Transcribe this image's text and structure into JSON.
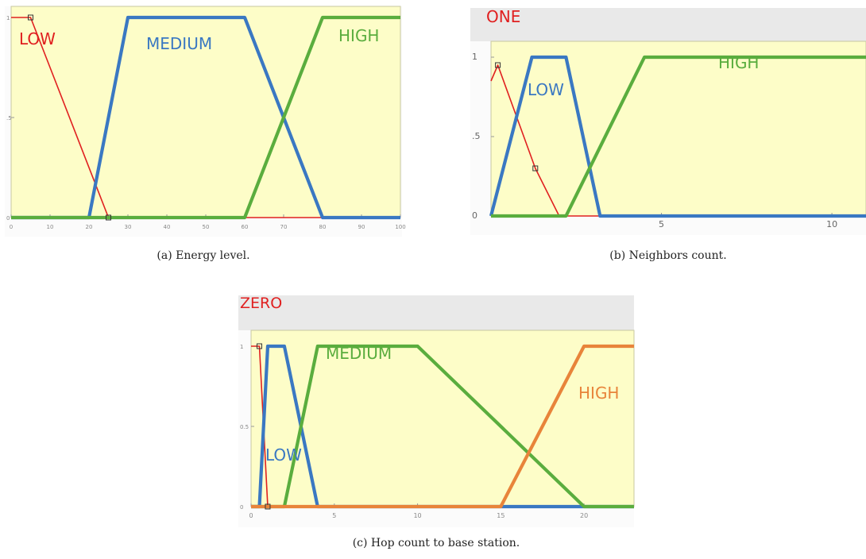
{
  "figure": {
    "panels": [
      {
        "caption": "(a) Energy level.",
        "chart_data": {
          "type": "line",
          "title": "",
          "xlabel": "",
          "ylabel": "",
          "xlim": [
            0,
            100
          ],
          "ylim": [
            0,
            1
          ],
          "x_ticks": [
            "0",
            "10",
            "20",
            "30",
            "40",
            "50",
            "60",
            "70",
            "80",
            "90",
            "100"
          ],
          "y_ticks": [
            "0",
            ".5",
            "1"
          ],
          "grid": false,
          "series": [
            {
              "name": "LOW",
              "color": "#e02020",
              "x": [
                0,
                5,
                25,
                100
              ],
              "y": [
                1,
                1,
                0,
                0
              ]
            },
            {
              "name": "MEDIUM",
              "color": "#3a78c2",
              "x": [
                0,
                20,
                30,
                60,
                80,
                100
              ],
              "y": [
                0,
                0,
                1,
                1,
                0,
                0
              ]
            },
            {
              "name": "HIGH",
              "color": "#5aad3e",
              "x": [
                0,
                60,
                80,
                100
              ],
              "y": [
                0,
                0,
                1,
                1
              ]
            }
          ]
        }
      },
      {
        "caption": "(b) Neighbors count.",
        "chart_data": {
          "type": "line",
          "title": "",
          "xlabel": "",
          "ylabel": "",
          "xlim": [
            0,
            11
          ],
          "ylim": [
            0,
            1
          ],
          "x_ticks": [
            "5",
            "10"
          ],
          "y_ticks": [
            "0",
            ".5",
            "1"
          ],
          "grid": false,
          "series": [
            {
              "name": "ONE",
              "color": "#e02020",
              "x": [
                0,
                0.2,
                1.3,
                2,
                11
              ],
              "y": [
                0.85,
                0.95,
                0.3,
                0,
                0
              ]
            },
            {
              "name": "LOW",
              "color": "#3a78c2",
              "x": [
                0,
                1.2,
                2.2,
                3.2,
                11
              ],
              "y": [
                0,
                1,
                1,
                0,
                0
              ]
            },
            {
              "name": "HIGH",
              "color": "#5aad3e",
              "x": [
                0,
                2.2,
                4.5,
                11
              ],
              "y": [
                0,
                0,
                1,
                1
              ]
            }
          ]
        }
      },
      {
        "caption": "(c) Hop count to base station.",
        "chart_data": {
          "type": "line",
          "title": "",
          "xlabel": "",
          "ylabel": "",
          "xlim": [
            0,
            23
          ],
          "ylim": [
            0,
            1
          ],
          "x_ticks": [
            "0",
            "5",
            "10",
            "15",
            "20"
          ],
          "y_ticks": [
            "0",
            "0.5",
            "1"
          ],
          "grid": false,
          "series": [
            {
              "name": "ZERO",
              "color": "#e02020",
              "x": [
                0,
                0.5,
                1,
                23
              ],
              "y": [
                1,
                1,
                0,
                0
              ]
            },
            {
              "name": "LOW",
              "color": "#3a78c2",
              "x": [
                0,
                0.5,
                1,
                2,
                4,
                23
              ],
              "y": [
                0,
                0,
                1,
                1,
                0,
                0
              ]
            },
            {
              "name": "MEDIUM",
              "color": "#5aad3e",
              "x": [
                0,
                2,
                4,
                10,
                20,
                23
              ],
              "y": [
                0,
                0,
                1,
                1,
                0,
                0
              ]
            },
            {
              "name": "HIGH",
              "color": "#e8843a",
              "x": [
                0,
                15,
                20,
                23
              ],
              "y": [
                0,
                0,
                1,
                1
              ]
            }
          ]
        }
      }
    ]
  }
}
